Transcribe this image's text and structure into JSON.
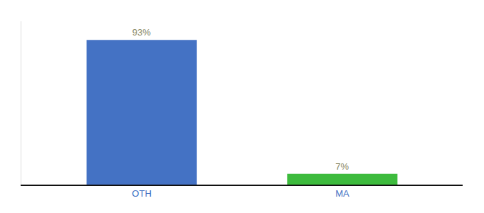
{
  "chart_data": {
    "type": "bar",
    "categories": [
      "OTH",
      "MA"
    ],
    "values": [
      93,
      7
    ],
    "value_labels": [
      "93%",
      "7%"
    ],
    "colors": [
      "#4472c4",
      "#3dbb3d"
    ],
    "data_labels": true,
    "ylim": [
      0,
      105
    ],
    "grid": false,
    "tick_labels": "x"
  }
}
